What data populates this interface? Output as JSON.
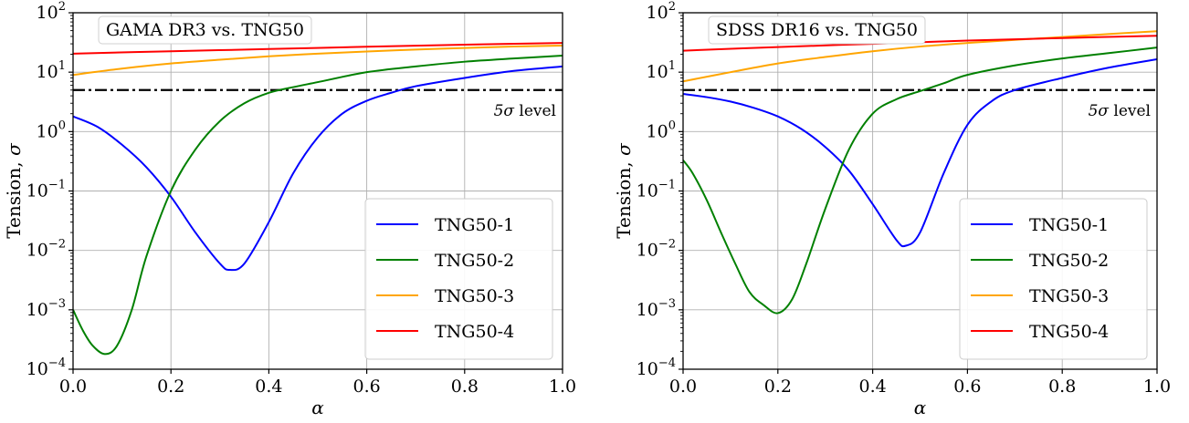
{
  "chart_data": [
    {
      "type": "line",
      "title": "GAMA DR3 vs. TNG50",
      "xlabel": "α",
      "ylabel": "Tension, σ",
      "xlim": [
        0.0,
        1.0
      ],
      "ylim_log10": [
        -4,
        2
      ],
      "yscale": "log",
      "grid": true,
      "legend_position": "lower-right",
      "x_ticks": [
        "0.0",
        "0.2",
        "0.4",
        "0.6",
        "0.8",
        "1.0"
      ],
      "y_ticks": [
        {
          "base": "10",
          "exp": "−4"
        },
        {
          "base": "10",
          "exp": "−3"
        },
        {
          "base": "10",
          "exp": "−2"
        },
        {
          "base": "10",
          "exp": "−1"
        },
        {
          "base": "10",
          "exp": "0"
        },
        {
          "base": "10",
          "exp": "1"
        },
        {
          "base": "10",
          "exp": "2"
        }
      ],
      "reference_line": {
        "y": 5,
        "label_sym": "5σ",
        "label_word": "level"
      },
      "series": [
        {
          "name": "TNG50-1",
          "color": "#0000ff",
          "x": [
            0.0,
            0.05,
            0.1,
            0.15,
            0.2,
            0.25,
            0.3,
            0.32,
            0.35,
            0.4,
            0.45,
            0.5,
            0.55,
            0.6,
            0.65,
            0.7,
            0.8,
            0.9,
            1.0
          ],
          "y": [
            1.8,
            1.2,
            0.6,
            0.25,
            0.08,
            0.02,
            0.006,
            0.0047,
            0.006,
            0.03,
            0.2,
            0.8,
            2.0,
            3.3,
            4.5,
            5.8,
            8.0,
            10.5,
            12.5
          ]
        },
        {
          "name": "TNG50-2",
          "color": "#008000",
          "x": [
            0.0,
            0.02,
            0.04,
            0.065,
            0.09,
            0.12,
            0.15,
            0.2,
            0.25,
            0.3,
            0.35,
            0.4,
            0.45,
            0.5,
            0.6,
            0.7,
            0.8,
            0.9,
            1.0
          ],
          "y": [
            0.001,
            0.00045,
            0.00025,
            0.00018,
            0.00025,
            0.001,
            0.008,
            0.1,
            0.5,
            1.5,
            3.0,
            4.5,
            5.6,
            6.8,
            10.0,
            12.5,
            15.0,
            17.0,
            19.0
          ]
        },
        {
          "name": "TNG50-3",
          "color": "#ffa500",
          "x": [
            0.0,
            0.1,
            0.2,
            0.3,
            0.4,
            0.5,
            0.6,
            0.7,
            0.8,
            0.9,
            1.0
          ],
          "y": [
            9.0,
            11.5,
            14.0,
            16.2,
            18.5,
            20.5,
            22.3,
            24.0,
            25.5,
            27.0,
            28.0
          ]
        },
        {
          "name": "TNG50-4",
          "color": "#ff0000",
          "x": [
            0.0,
            0.2,
            0.4,
            0.6,
            0.8,
            1.0
          ],
          "y": [
            20.5,
            22.5,
            24.5,
            26.8,
            29.0,
            31.0
          ]
        }
      ]
    },
    {
      "type": "line",
      "title": "SDSS DR16 vs. TNG50",
      "xlabel": "α",
      "ylabel": "Tension, σ",
      "xlim": [
        0.0,
        1.0
      ],
      "ylim_log10": [
        -4,
        2
      ],
      "yscale": "log",
      "grid": true,
      "legend_position": "lower-right",
      "x_ticks": [
        "0.0",
        "0.2",
        "0.4",
        "0.6",
        "0.8",
        "1.0"
      ],
      "y_ticks": [
        {
          "base": "10",
          "exp": "−4"
        },
        {
          "base": "10",
          "exp": "−3"
        },
        {
          "base": "10",
          "exp": "−2"
        },
        {
          "base": "10",
          "exp": "−1"
        },
        {
          "base": "10",
          "exp": "0"
        },
        {
          "base": "10",
          "exp": "1"
        },
        {
          "base": "10",
          "exp": "2"
        }
      ],
      "reference_line": {
        "y": 5,
        "label_sym": "5σ",
        "label_word": "level"
      },
      "series": [
        {
          "name": "TNG50-1",
          "color": "#0000ff",
          "x": [
            0.0,
            0.05,
            0.1,
            0.15,
            0.2,
            0.25,
            0.3,
            0.35,
            0.4,
            0.45,
            0.47,
            0.5,
            0.55,
            0.6,
            0.65,
            0.7,
            0.8,
            0.9,
            1.0
          ],
          "y": [
            4.3,
            3.8,
            3.2,
            2.5,
            1.8,
            1.1,
            0.55,
            0.22,
            0.06,
            0.015,
            0.012,
            0.02,
            0.2,
            1.3,
            3.2,
            5.0,
            8.0,
            12.0,
            16.5
          ]
        },
        {
          "name": "TNG50-2",
          "color": "#008000",
          "x": [
            0.0,
            0.02,
            0.05,
            0.08,
            0.11,
            0.14,
            0.17,
            0.2,
            0.23,
            0.26,
            0.3,
            0.35,
            0.4,
            0.45,
            0.5,
            0.55,
            0.6,
            0.7,
            0.8,
            0.9,
            1.0
          ],
          "y": [
            0.33,
            0.2,
            0.07,
            0.02,
            0.006,
            0.002,
            0.0012,
            0.00088,
            0.0015,
            0.006,
            0.05,
            0.5,
            2.0,
            3.5,
            4.8,
            6.5,
            9.0,
            13.0,
            17.0,
            21.0,
            26.0
          ]
        },
        {
          "name": "TNG50-3",
          "color": "#ffa500",
          "x": [
            0.0,
            0.1,
            0.2,
            0.3,
            0.4,
            0.5,
            0.6,
            0.7,
            0.8,
            0.9,
            1.0
          ],
          "y": [
            7.0,
            10.0,
            14.0,
            18.0,
            22.5,
            27.0,
            31.0,
            35.0,
            39.0,
            44.0,
            49.0
          ]
        },
        {
          "name": "TNG50-4",
          "color": "#ff0000",
          "x": [
            0.0,
            0.2,
            0.4,
            0.6,
            0.8,
            1.0
          ],
          "y": [
            23.0,
            26.5,
            30.0,
            34.0,
            37.5,
            41.0
          ]
        }
      ]
    }
  ]
}
